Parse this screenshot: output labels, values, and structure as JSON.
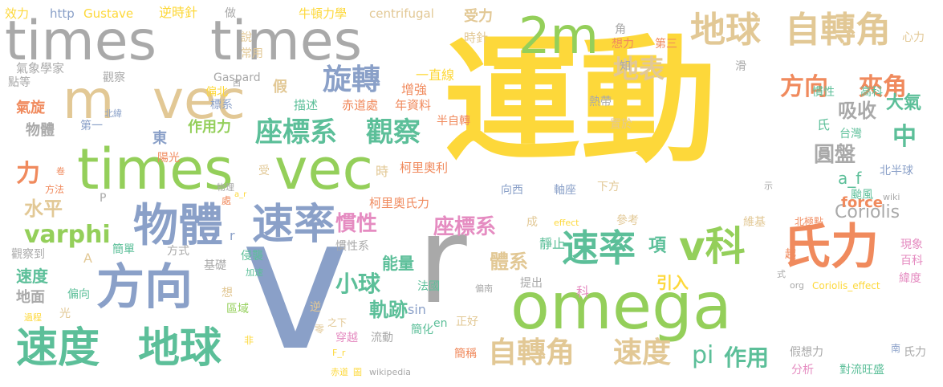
{
  "palette": {
    "yellow": "#fdd83a",
    "gray": "#a9a9a9",
    "green": "#94cf5a",
    "tan": "#e2c895",
    "blue": "#8aa0c8",
    "teal": "#5cbf99",
    "orange": "#f08a5d",
    "pink": "#e58cc1"
  },
  "words": [
    "運動",
    "v",
    "r",
    "omega",
    "times",
    "vec",
    "m",
    "times",
    "vec",
    "氏力",
    "方向",
    "速度",
    "地球",
    "物體",
    "速率",
    "2m",
    "地球",
    "自轉角",
    "旋轉",
    "地表",
    "方向",
    "夾角",
    "座標系",
    "觀察",
    "速率",
    "v科",
    "自轉角",
    "速度",
    "pi",
    "作用",
    "varphi",
    "慣性",
    "座標系",
    "小球",
    "軌跡",
    "圓盤",
    "Coriolis",
    "中",
    "吸收",
    "大氣",
    "力",
    "水平",
    "能量",
    "體系",
    "項",
    "引入",
    "force",
    "a_f",
    "作用力",
    "物體",
    "東",
    "氣旋",
    "第一",
    "陽光",
    "柯里奧利",
    "柯里奧氏力",
    "半自轉",
    "赤道處",
    "年資料",
    "描述",
    "假",
    "增強",
    "一直線",
    "偏北",
    "標系",
    "Gaspard",
    "觀察",
    "點等",
    "氣象學家",
    "效力",
    "http",
    "Gustave",
    "逆時針",
    "做",
    "牛頓力學",
    "centrifugal",
    "受力",
    "角",
    "心力",
    "說",
    "常用",
    "時針",
    "第三",
    "想力",
    "知",
    "熱帶",
    "慣性",
    "高科",
    "氏",
    "台灣",
    "置於",
    "北半球",
    "颱風",
    "向西",
    "軸座",
    "下方",
    "北極點",
    "維基",
    "現象",
    "百科",
    "緯度",
    "越",
    "科",
    "提出",
    "偏南",
    "Coriolis_effect",
    "org",
    "式",
    "假想力",
    "南",
    "氏力",
    "分析",
    "對流旺盛",
    "簡稱",
    "正好",
    "sin",
    "en",
    "簡化",
    "法國",
    "穿越",
    "之下",
    "流動",
    "逆",
    "零",
    "F_r",
    "赤道",
    "圖",
    "wikipedia",
    "非",
    "區域",
    "想",
    "光",
    "偏向",
    "過程",
    "速度",
    "地面",
    "觀察到",
    "A",
    "簡單",
    "方式",
    "基礎",
    "侵襲",
    "加速",
    "慣性系",
    "P",
    "方法",
    "北緯",
    "處",
    "物理",
    "受",
    "時",
    "卷",
    "a_r",
    "wiki",
    "示",
    "成",
    "effect",
    "參考",
    "靜止",
    "r",
    "西",
    "滑"
  ]
}
